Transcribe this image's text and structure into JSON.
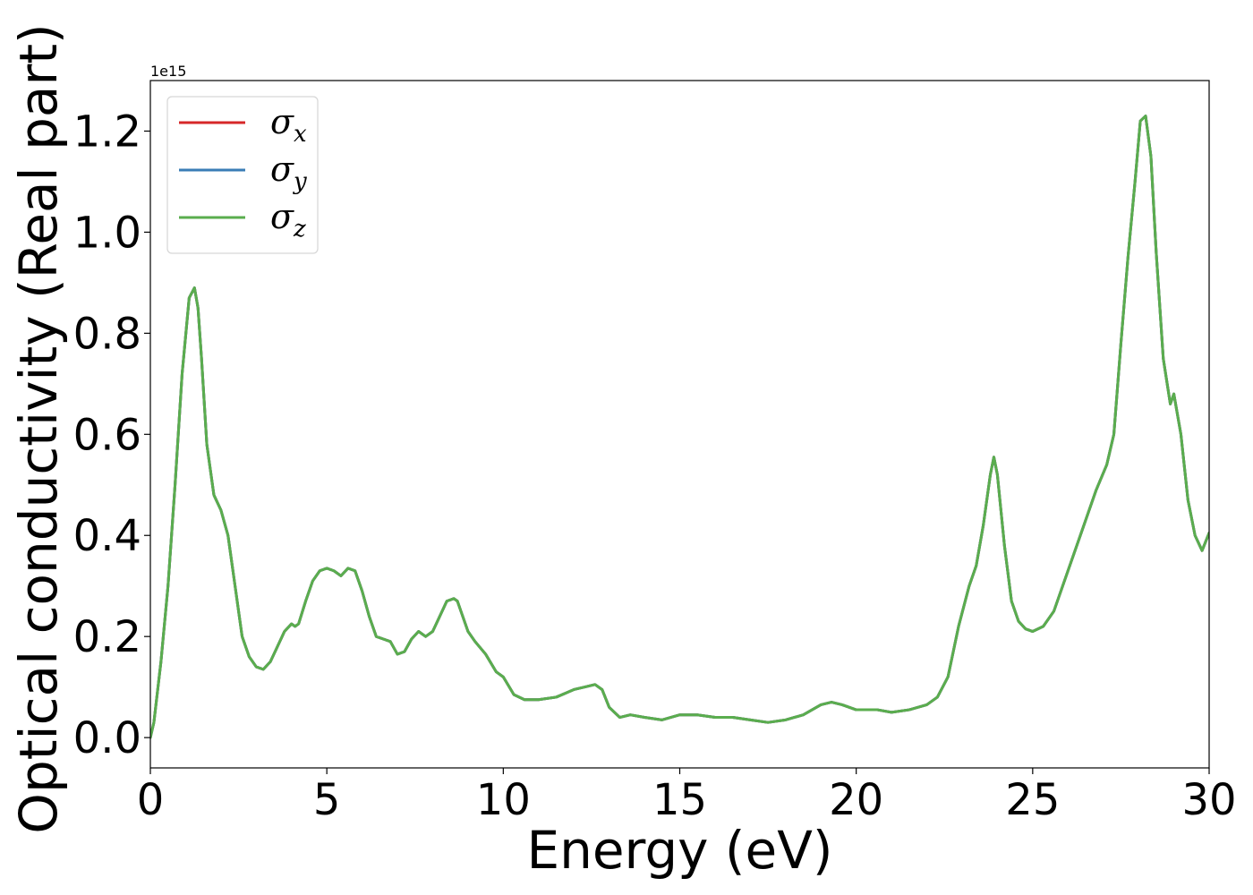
{
  "chart_data": {
    "type": "line",
    "title": "",
    "xlabel": "Energy (eV)",
    "ylabel": "Optical conductivity (Real part)",
    "y_offset_text": "1e15",
    "y_scale_factor": 1000000000000000.0,
    "xlim": [
      0,
      30
    ],
    "ylim": [
      -0.06,
      1.3
    ],
    "x_ticks": [
      "0",
      "5",
      "10",
      "15",
      "20",
      "25",
      "30"
    ],
    "y_ticks": [
      "0.0",
      "0.2",
      "0.4",
      "0.6",
      "0.8",
      "1.0",
      "1.2"
    ],
    "grid": false,
    "legend_position": "upper-left",
    "colors": {
      "sigma_x": "#d62728",
      "sigma_y": "#3a7db6",
      "sigma_z": "#5aad4e"
    },
    "series": [
      {
        "name": "σx",
        "legend": {
          "base": "σ",
          "sub": "x"
        },
        "color": "#d62728",
        "x": [
          0,
          0.1,
          0.3,
          0.5,
          0.7,
          0.9,
          1.1,
          1.25,
          1.35,
          1.45,
          1.6,
          1.8,
          2.0,
          2.2,
          2.4,
          2.6,
          2.8,
          3.0,
          3.2,
          3.4,
          3.6,
          3.8,
          4.0,
          4.1,
          4.2,
          4.4,
          4.6,
          4.8,
          5.0,
          5.2,
          5.4,
          5.6,
          5.8,
          6.0,
          6.2,
          6.4,
          6.6,
          6.8,
          7.0,
          7.2,
          7.4,
          7.6,
          7.8,
          8.0,
          8.2,
          8.4,
          8.6,
          8.7,
          8.8,
          9.0,
          9.2,
          9.5,
          9.8,
          10.0,
          10.3,
          10.6,
          11.0,
          11.5,
          12.0,
          12.3,
          12.6,
          12.8,
          13.0,
          13.3,
          13.6,
          14.0,
          14.5,
          15.0,
          15.5,
          16.0,
          16.5,
          17.0,
          17.5,
          18.0,
          18.5,
          19.0,
          19.3,
          19.6,
          20.0,
          20.3,
          20.6,
          21.0,
          21.5,
          22.0,
          22.3,
          22.6,
          22.9,
          23.2,
          23.4,
          23.6,
          23.8,
          23.9,
          24.0,
          24.2,
          24.4,
          24.6,
          24.8,
          25.0,
          25.3,
          25.6,
          26.0,
          26.4,
          26.8,
          27.1,
          27.3,
          27.5,
          27.7,
          27.9,
          28.05,
          28.2,
          28.35,
          28.5,
          28.7,
          28.9,
          29.0,
          29.2,
          29.4,
          29.6,
          29.8,
          30.0
        ],
        "y": [
          0.0,
          0.03,
          0.15,
          0.3,
          0.5,
          0.72,
          0.87,
          0.89,
          0.85,
          0.75,
          0.58,
          0.48,
          0.45,
          0.4,
          0.3,
          0.2,
          0.16,
          0.14,
          0.135,
          0.15,
          0.18,
          0.21,
          0.225,
          0.22,
          0.225,
          0.27,
          0.31,
          0.33,
          0.335,
          0.33,
          0.32,
          0.335,
          0.33,
          0.29,
          0.24,
          0.2,
          0.195,
          0.19,
          0.165,
          0.17,
          0.195,
          0.21,
          0.2,
          0.21,
          0.24,
          0.27,
          0.275,
          0.27,
          0.25,
          0.21,
          0.19,
          0.165,
          0.13,
          0.12,
          0.085,
          0.075,
          0.075,
          0.08,
          0.095,
          0.1,
          0.105,
          0.095,
          0.06,
          0.04,
          0.045,
          0.04,
          0.035,
          0.045,
          0.045,
          0.04,
          0.04,
          0.035,
          0.03,
          0.035,
          0.045,
          0.065,
          0.07,
          0.065,
          0.055,
          0.055,
          0.055,
          0.05,
          0.055,
          0.065,
          0.08,
          0.12,
          0.22,
          0.3,
          0.34,
          0.42,
          0.52,
          0.555,
          0.52,
          0.38,
          0.27,
          0.23,
          0.215,
          0.21,
          0.22,
          0.25,
          0.33,
          0.41,
          0.49,
          0.54,
          0.6,
          0.78,
          0.95,
          1.1,
          1.22,
          1.23,
          1.15,
          0.96,
          0.75,
          0.66,
          0.68,
          0.6,
          0.47,
          0.4,
          0.37,
          0.405
        ]
      },
      {
        "name": "σy",
        "legend": {
          "base": "σ",
          "sub": "y"
        },
        "color": "#3a7db6",
        "x": [
          0,
          0.1,
          0.3,
          0.5,
          0.7,
          0.9,
          1.1,
          1.25,
          1.35,
          1.45,
          1.6,
          1.8,
          2.0,
          2.2,
          2.4,
          2.6,
          2.8,
          3.0,
          3.2,
          3.4,
          3.6,
          3.8,
          4.0,
          4.1,
          4.2,
          4.4,
          4.6,
          4.8,
          5.0,
          5.2,
          5.4,
          5.6,
          5.8,
          6.0,
          6.2,
          6.4,
          6.6,
          6.8,
          7.0,
          7.2,
          7.4,
          7.6,
          7.8,
          8.0,
          8.2,
          8.4,
          8.6,
          8.7,
          8.8,
          9.0,
          9.2,
          9.5,
          9.8,
          10.0,
          10.3,
          10.6,
          11.0,
          11.5,
          12.0,
          12.3,
          12.6,
          12.8,
          13.0,
          13.3,
          13.6,
          14.0,
          14.5,
          15.0,
          15.5,
          16.0,
          16.5,
          17.0,
          17.5,
          18.0,
          18.5,
          19.0,
          19.3,
          19.6,
          20.0,
          20.3,
          20.6,
          21.0,
          21.5,
          22.0,
          22.3,
          22.6,
          22.9,
          23.2,
          23.4,
          23.6,
          23.8,
          23.9,
          24.0,
          24.2,
          24.4,
          24.6,
          24.8,
          25.0,
          25.3,
          25.6,
          26.0,
          26.4,
          26.8,
          27.1,
          27.3,
          27.5,
          27.7,
          27.9,
          28.05,
          28.2,
          28.35,
          28.5,
          28.7,
          28.9,
          29.0,
          29.2,
          29.4,
          29.6,
          29.8,
          30.0
        ],
        "y": [
          0.0,
          0.03,
          0.15,
          0.3,
          0.5,
          0.72,
          0.87,
          0.89,
          0.85,
          0.75,
          0.58,
          0.48,
          0.45,
          0.4,
          0.3,
          0.2,
          0.16,
          0.14,
          0.135,
          0.15,
          0.18,
          0.21,
          0.225,
          0.22,
          0.225,
          0.27,
          0.31,
          0.33,
          0.335,
          0.33,
          0.32,
          0.335,
          0.33,
          0.29,
          0.24,
          0.2,
          0.195,
          0.19,
          0.165,
          0.17,
          0.195,
          0.21,
          0.2,
          0.21,
          0.24,
          0.27,
          0.275,
          0.27,
          0.25,
          0.21,
          0.19,
          0.165,
          0.13,
          0.12,
          0.085,
          0.075,
          0.075,
          0.08,
          0.095,
          0.1,
          0.105,
          0.095,
          0.06,
          0.04,
          0.045,
          0.04,
          0.035,
          0.045,
          0.045,
          0.04,
          0.04,
          0.035,
          0.03,
          0.035,
          0.045,
          0.065,
          0.07,
          0.065,
          0.055,
          0.055,
          0.055,
          0.05,
          0.055,
          0.065,
          0.08,
          0.12,
          0.22,
          0.3,
          0.34,
          0.42,
          0.52,
          0.555,
          0.52,
          0.38,
          0.27,
          0.23,
          0.215,
          0.21,
          0.22,
          0.25,
          0.33,
          0.41,
          0.49,
          0.54,
          0.6,
          0.78,
          0.95,
          1.1,
          1.22,
          1.23,
          1.15,
          0.96,
          0.75,
          0.66,
          0.68,
          0.6,
          0.47,
          0.4,
          0.37,
          0.405
        ]
      },
      {
        "name": "σz",
        "legend": {
          "base": "σ",
          "sub": "z"
        },
        "color": "#5aad4e",
        "x": [
          0,
          0.1,
          0.3,
          0.5,
          0.7,
          0.9,
          1.1,
          1.25,
          1.35,
          1.45,
          1.6,
          1.8,
          2.0,
          2.2,
          2.4,
          2.6,
          2.8,
          3.0,
          3.2,
          3.4,
          3.6,
          3.8,
          4.0,
          4.1,
          4.2,
          4.4,
          4.6,
          4.8,
          5.0,
          5.2,
          5.4,
          5.6,
          5.8,
          6.0,
          6.2,
          6.4,
          6.6,
          6.8,
          7.0,
          7.2,
          7.4,
          7.6,
          7.8,
          8.0,
          8.2,
          8.4,
          8.6,
          8.7,
          8.8,
          9.0,
          9.2,
          9.5,
          9.8,
          10.0,
          10.3,
          10.6,
          11.0,
          11.5,
          12.0,
          12.3,
          12.6,
          12.8,
          13.0,
          13.3,
          13.6,
          14.0,
          14.5,
          15.0,
          15.5,
          16.0,
          16.5,
          17.0,
          17.5,
          18.0,
          18.5,
          19.0,
          19.3,
          19.6,
          20.0,
          20.3,
          20.6,
          21.0,
          21.5,
          22.0,
          22.3,
          22.6,
          22.9,
          23.2,
          23.4,
          23.6,
          23.8,
          23.9,
          24.0,
          24.2,
          24.4,
          24.6,
          24.8,
          25.0,
          25.3,
          25.6,
          26.0,
          26.4,
          26.8,
          27.1,
          27.3,
          27.5,
          27.7,
          27.9,
          28.05,
          28.2,
          28.35,
          28.5,
          28.7,
          28.9,
          29.0,
          29.2,
          29.4,
          29.6,
          29.8,
          30.0
        ],
        "y": [
          0.0,
          0.03,
          0.15,
          0.3,
          0.5,
          0.72,
          0.87,
          0.89,
          0.85,
          0.75,
          0.58,
          0.48,
          0.45,
          0.4,
          0.3,
          0.2,
          0.16,
          0.14,
          0.135,
          0.15,
          0.18,
          0.21,
          0.225,
          0.22,
          0.225,
          0.27,
          0.31,
          0.33,
          0.335,
          0.33,
          0.32,
          0.335,
          0.33,
          0.29,
          0.24,
          0.2,
          0.195,
          0.19,
          0.165,
          0.17,
          0.195,
          0.21,
          0.2,
          0.21,
          0.24,
          0.27,
          0.275,
          0.27,
          0.25,
          0.21,
          0.19,
          0.165,
          0.13,
          0.12,
          0.085,
          0.075,
          0.075,
          0.08,
          0.095,
          0.1,
          0.105,
          0.095,
          0.06,
          0.04,
          0.045,
          0.04,
          0.035,
          0.045,
          0.045,
          0.04,
          0.04,
          0.035,
          0.03,
          0.035,
          0.045,
          0.065,
          0.07,
          0.065,
          0.055,
          0.055,
          0.055,
          0.05,
          0.055,
          0.065,
          0.08,
          0.12,
          0.22,
          0.3,
          0.34,
          0.42,
          0.52,
          0.555,
          0.52,
          0.38,
          0.27,
          0.23,
          0.215,
          0.21,
          0.22,
          0.25,
          0.33,
          0.41,
          0.49,
          0.54,
          0.6,
          0.78,
          0.95,
          1.1,
          1.22,
          1.23,
          1.15,
          0.96,
          0.75,
          0.66,
          0.68,
          0.6,
          0.47,
          0.4,
          0.37,
          0.405
        ]
      }
    ]
  }
}
